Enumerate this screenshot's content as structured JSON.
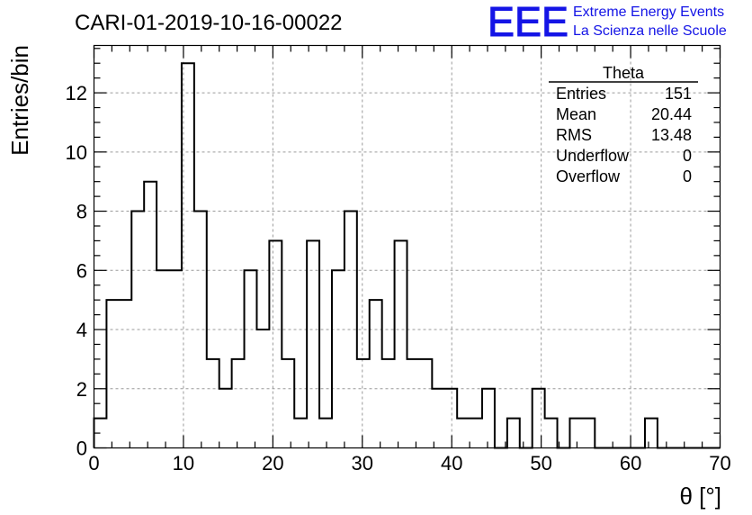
{
  "header": {
    "run_title": "CARI-01-2019-10-16-00022",
    "logo_text": "EEE",
    "org_line1": "Extreme Energy Events",
    "org_line2": "La Scienza nelle Scuole",
    "brand_color": "#1414e6"
  },
  "stats_box": {
    "title": "Theta",
    "rows": [
      {
        "label": "Entries",
        "value": "151"
      },
      {
        "label": "Mean",
        "value": "20.44"
      },
      {
        "label": "RMS",
        "value": "13.48"
      },
      {
        "label": "Underflow",
        "value": "0"
      },
      {
        "label": "Overflow",
        "value": "0"
      }
    ]
  },
  "chart_data": {
    "type": "bar",
    "histogram": true,
    "title": "CARI-01-2019-10-16-00022",
    "xlabel": "θ [°]",
    "ylabel": "Entries/bin",
    "xlim": [
      0,
      70
    ],
    "ylim": [
      0,
      13.6
    ],
    "bin_width": 1.4,
    "x_ticks": [
      "0",
      "10",
      "20",
      "30",
      "40",
      "50",
      "60",
      "70"
    ],
    "y_ticks": [
      "0",
      "2",
      "4",
      "6",
      "8",
      "10",
      "12"
    ],
    "grid": true,
    "values": [
      1,
      5,
      5,
      8,
      9,
      6,
      6,
      13,
      8,
      3,
      2,
      3,
      6,
      4,
      7,
      3,
      1,
      7,
      1,
      6,
      8,
      3,
      5,
      3,
      7,
      3,
      3,
      2,
      2,
      1,
      1,
      2,
      0,
      1,
      0,
      2,
      1,
      0,
      1,
      1,
      0,
      0,
      0,
      0,
      1,
      0,
      0,
      0,
      0,
      0
    ],
    "line_color": "#000000"
  }
}
